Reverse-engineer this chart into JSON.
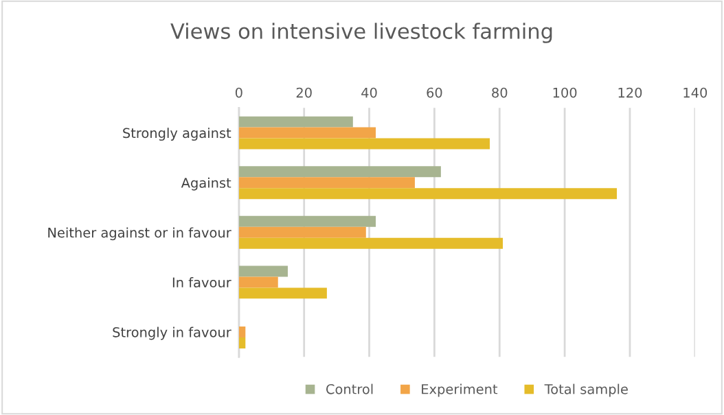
{
  "chart_data": {
    "type": "bar",
    "orientation": "horizontal",
    "title": "Views on intensive livestock farming",
    "categories": [
      "Strongly against",
      "Against",
      "Neither against or in favour",
      "In favour",
      "Strongly in favour"
    ],
    "series": [
      {
        "name": "Control",
        "color": "#a7b490",
        "values": [
          35,
          62,
          42,
          15,
          0
        ]
      },
      {
        "name": "Experiment",
        "color": "#f2a548",
        "values": [
          42,
          54,
          39,
          12,
          2
        ]
      },
      {
        "name": "Total sample",
        "color": "#e5bc2a",
        "values": [
          77,
          116,
          81,
          27,
          2
        ]
      }
    ],
    "xlim": [
      0,
      140
    ],
    "xticks": [
      0,
      20,
      40,
      60,
      80,
      100,
      120,
      140
    ],
    "grid": "x",
    "legend": "bottom"
  }
}
